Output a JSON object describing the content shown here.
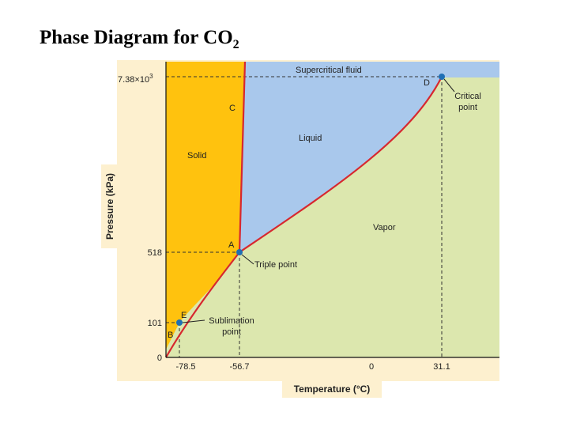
{
  "title": {
    "text": "Phase Diagram for CO",
    "subscript": "2"
  },
  "axes": {
    "x_label": "Temperature (°C)",
    "y_label": "Pressure (kPa)",
    "x_ticks": [
      "-78.5",
      "-56.7",
      "0",
      "31.1"
    ],
    "y_ticks": {
      "top_mantissa": "7.38",
      "top_times": "×",
      "top_base": "10",
      "top_exp": "3",
      "mid": "518",
      "low": "101",
      "zero": "0"
    }
  },
  "regions": {
    "solid": "Solid",
    "liquid": "Liquid",
    "vapor": "Vapor",
    "supercritical": "Supercritical fluid"
  },
  "points": {
    "A": "A",
    "B": "B",
    "C": "C",
    "D": "D",
    "E": "E"
  },
  "annotations": {
    "triple_point": "Triple point",
    "sublimation_line1": "Sublimation",
    "sublimation_line2": "point",
    "critical_line1": "Critical",
    "critical_line2": "point"
  },
  "colors": {
    "solid": "#FFC20E",
    "liquid": "#A9C8EC",
    "vapor": "#DCE7AE",
    "supercritical": "#A9C8EC",
    "frame": "#FDF0CF",
    "curve": "#D7282F",
    "point": "#1F6FB5"
  }
}
